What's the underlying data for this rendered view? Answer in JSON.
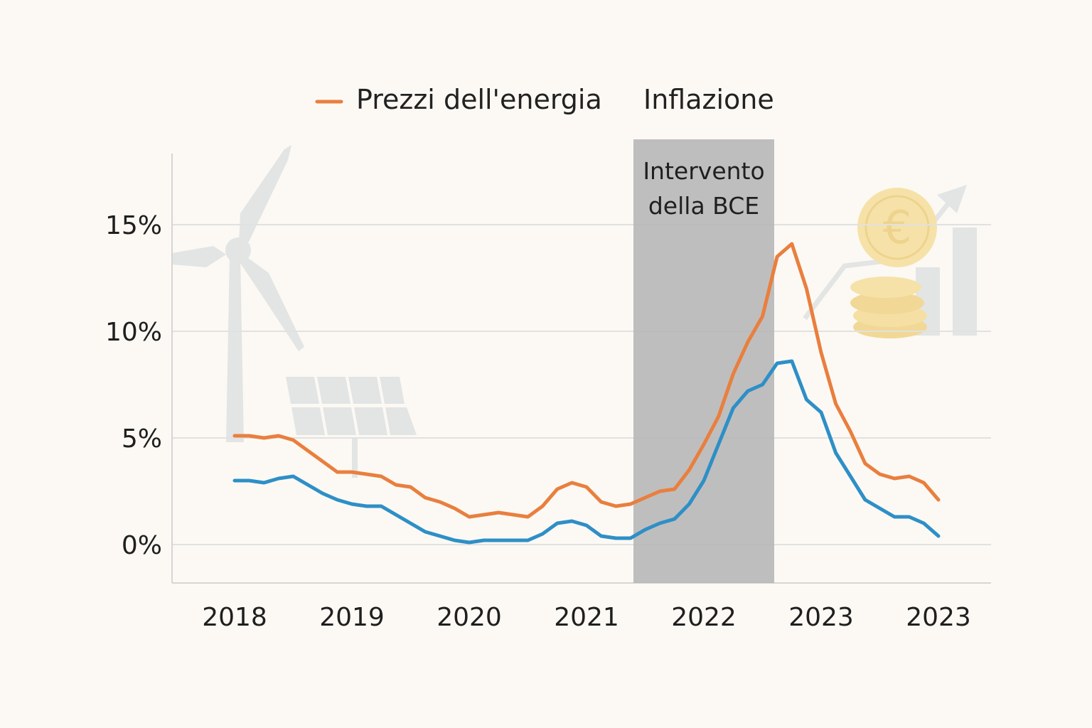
{
  "chart_data": {
    "type": "line",
    "title": "",
    "xlabel": "",
    "ylabel": "",
    "x_tick_labels": [
      "2018",
      "2019",
      "2020",
      "2021",
      "2022",
      "2023",
      "2023"
    ],
    "y_ticks": [
      0,
      5,
      10,
      15
    ],
    "y_tick_labels": [
      "0%",
      "5%",
      "10%",
      "15%"
    ],
    "ylim": [
      -1.8,
      19
    ],
    "grid": true,
    "legend_position": "top-center",
    "series": [
      {
        "name": "Prezzi dell'energia",
        "color": "#e97f3e",
        "x": [
          0.0,
          0.125,
          0.25,
          0.375,
          0.5,
          0.625,
          0.75,
          0.875,
          1.0,
          1.125,
          1.25,
          1.375,
          1.5,
          1.625,
          1.75,
          1.875,
          2.0,
          2.125,
          2.25,
          2.375,
          2.5,
          2.625,
          2.75,
          2.875,
          3.0,
          3.125,
          3.25,
          3.375,
          3.5,
          3.625,
          3.75,
          3.875,
          4.0,
          4.125,
          4.25,
          4.375,
          4.5,
          4.625,
          4.75,
          4.875,
          5.0,
          5.125,
          5.25,
          5.375,
          5.5,
          5.625,
          5.75,
          5.875,
          6.0
        ],
        "values": [
          5.1,
          5.1,
          5.0,
          5.1,
          4.9,
          4.4,
          3.9,
          3.4,
          3.4,
          3.3,
          3.2,
          2.8,
          2.7,
          2.2,
          2.0,
          1.7,
          1.3,
          1.4,
          1.5,
          1.4,
          1.3,
          1.8,
          2.6,
          2.9,
          2.7,
          2.0,
          1.8,
          1.9,
          2.2,
          2.5,
          2.6,
          3.5,
          4.7,
          6.0,
          8.0,
          9.5,
          10.7,
          13.5,
          14.1,
          12.0,
          9.0,
          6.6,
          5.3,
          3.8,
          3.3,
          3.1,
          3.2,
          2.9,
          2.1
        ]
      },
      {
        "name": "Inflazione",
        "color": "#2e8fc7",
        "x": [
          0.0,
          0.125,
          0.25,
          0.375,
          0.5,
          0.625,
          0.75,
          0.875,
          1.0,
          1.125,
          1.25,
          1.375,
          1.5,
          1.625,
          1.75,
          1.875,
          2.0,
          2.125,
          2.25,
          2.375,
          2.5,
          2.625,
          2.75,
          2.875,
          3.0,
          3.125,
          3.25,
          3.375,
          3.5,
          3.625,
          3.75,
          3.875,
          4.0,
          4.125,
          4.25,
          4.375,
          4.5,
          4.625,
          4.75,
          4.875,
          5.0,
          5.125,
          5.25,
          5.375,
          5.5,
          5.625,
          5.75,
          5.875,
          6.0
        ],
        "values": [
          3.0,
          3.0,
          2.9,
          3.1,
          3.2,
          2.8,
          2.4,
          2.1,
          1.9,
          1.8,
          1.8,
          1.4,
          1.0,
          0.6,
          0.4,
          0.2,
          0.1,
          0.2,
          0.2,
          0.2,
          0.2,
          0.5,
          1.0,
          1.1,
          0.9,
          0.4,
          0.3,
          0.3,
          0.7,
          1.0,
          1.2,
          1.9,
          3.0,
          4.7,
          6.4,
          7.2,
          7.5,
          8.5,
          8.6,
          6.8,
          6.2,
          4.3,
          3.2,
          2.1,
          1.7,
          1.3,
          1.3,
          1.0,
          0.4
        ]
      }
    ],
    "annotations": [
      {
        "type": "shaded-region",
        "label_lines": [
          "Intervento",
          "della BCE"
        ],
        "x_start": 3.4,
        "x_end": 4.6,
        "color": "#b4b4b4"
      }
    ]
  }
}
